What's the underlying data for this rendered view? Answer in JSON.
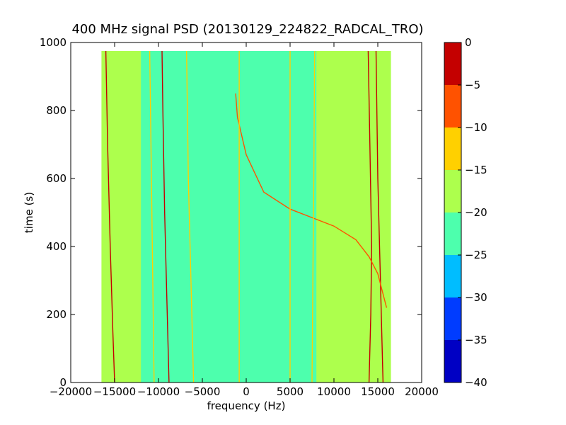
{
  "chart_data": {
    "type": "heatmap",
    "title": "400 MHz signal PSD (20130129_224822_RADCAL_TRO)",
    "xlabel": "frequency (Hz)",
    "ylabel": "time (s)",
    "xlim": [
      -20000,
      20000
    ],
    "ylim": [
      0,
      1000
    ],
    "x_ticks": [
      -20000,
      -15000,
      -10000,
      -5000,
      0,
      5000,
      10000,
      15000,
      20000
    ],
    "x_tick_labels": [
      "−20000",
      "−15000",
      "−10000",
      "−5000",
      "0",
      "5000",
      "10000",
      "15000",
      "20000"
    ],
    "y_ticks": [
      0,
      200,
      400,
      600,
      800,
      1000
    ],
    "y_tick_labels": [
      "0",
      "200",
      "400",
      "600",
      "800",
      "1000"
    ],
    "data_extent": {
      "x": [
        -16500,
        16500
      ],
      "y": [
        0,
        975
      ]
    },
    "grid": false,
    "colorbar": {
      "min": -40,
      "max": 0,
      "levels": [
        -40,
        -35,
        -30,
        -25,
        -20,
        -15,
        -10,
        -5,
        0
      ],
      "tick_labels": [
        "−40",
        "−35",
        "−30",
        "−25",
        "−20",
        "−15",
        "−10",
        "−5",
        "0"
      ],
      "colors": [
        "#0000c4",
        "#003cff",
        "#00bdff",
        "#4dffad",
        "#adff4d",
        "#ffd000",
        "#ff5200",
        "#c40000"
      ]
    },
    "background_levels": {
      "outer_band_value": -17.5,
      "inner_band_value": -22.5,
      "inner_band_x": [
        -12000,
        8000
      ]
    },
    "features": [
      {
        "kind": "line",
        "value": -2.5,
        "points": [
          [
            -15000,
            0
          ],
          [
            -15200,
            150
          ],
          [
            -15500,
            400
          ],
          [
            -15800,
            700
          ],
          [
            -16000,
            975
          ]
        ]
      },
      {
        "kind": "line",
        "value": -2.5,
        "points": [
          [
            -8800,
            0
          ],
          [
            -9000,
            200
          ],
          [
            -9300,
            500
          ],
          [
            -9500,
            800
          ],
          [
            -9600,
            975
          ]
        ]
      },
      {
        "kind": "line",
        "value": -2.5,
        "points": [
          [
            14000,
            0
          ],
          [
            14200,
            200
          ],
          [
            14300,
            400
          ],
          [
            14100,
            700
          ],
          [
            13900,
            975
          ]
        ]
      },
      {
        "kind": "line",
        "value": -2.5,
        "points": [
          [
            15600,
            0
          ],
          [
            15300,
            300
          ],
          [
            15000,
            600
          ],
          [
            14800,
            975
          ]
        ]
      },
      {
        "kind": "line",
        "value": -7.5,
        "points": [
          [
            -1200,
            850
          ],
          [
            -1000,
            780
          ],
          [
            0,
            670
          ],
          [
            2000,
            560
          ],
          [
            5000,
            510
          ],
          [
            8000,
            480
          ],
          [
            10000,
            460
          ],
          [
            12500,
            420
          ],
          [
            14000,
            370
          ],
          [
            15000,
            320
          ],
          [
            16000,
            220
          ]
        ]
      },
      {
        "kind": "line",
        "value": -12.5,
        "points": [
          [
            -6000,
            0
          ],
          [
            -6300,
            300
          ],
          [
            -6600,
            600
          ],
          [
            -6800,
            975
          ]
        ]
      },
      {
        "kind": "line",
        "value": -12.5,
        "points": [
          [
            -10500,
            0
          ],
          [
            -10700,
            400
          ],
          [
            -11000,
            975
          ]
        ]
      },
      {
        "kind": "line",
        "value": -12.5,
        "points": [
          [
            7500,
            0
          ],
          [
            7600,
            300
          ],
          [
            7700,
            600
          ],
          [
            7800,
            975
          ]
        ]
      },
      {
        "kind": "line",
        "value": -12.5,
        "points": [
          [
            -800,
            0
          ],
          [
            -800,
            975
          ]
        ]
      },
      {
        "kind": "line",
        "value": -12.5,
        "points": [
          [
            5000,
            0
          ],
          [
            5000,
            975
          ]
        ]
      }
    ]
  }
}
